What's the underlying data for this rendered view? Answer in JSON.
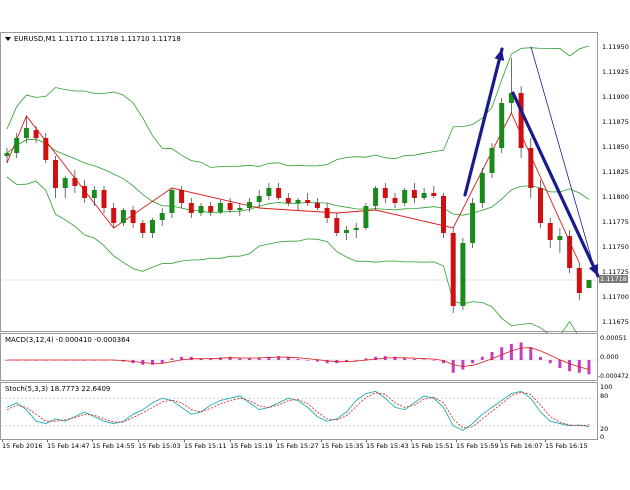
{
  "main": {
    "title": "EURUSD,M1  1.11710 1.11718 1.11710 1.11718",
    "price_ticks": [
      "1.11950",
      "1.11925",
      "1.11900",
      "1.11875",
      "1.11850",
      "1.11825",
      "1.11800",
      "1.11775",
      "1.11750",
      "1.11725",
      "1.11700",
      "1.11675"
    ],
    "current_price": "1.11718",
    "colors": {
      "bull": "#1a8a1a",
      "bear": "#d01010",
      "bands": "#2e9e2e",
      "zigzag": "#e01818",
      "arrow": "#1a1a8c"
    }
  },
  "macd": {
    "title": "MACD(3,12,4) -0.000410 -0.000364",
    "ticks": [
      "0.00051",
      "0.000",
      "-0.000472"
    ],
    "colors": {
      "hist": "#c040c0",
      "signal": "#e01818"
    }
  },
  "stoch": {
    "title": "Stoch(5,3,3) 18.7773 22.6409",
    "ticks": [
      "100",
      "80",
      "20",
      "0"
    ],
    "colors": {
      "main": "#20b0b0",
      "signal": "#e01818"
    }
  },
  "time_axis": {
    "labels": [
      "15 Feb 2016",
      "15 Feb 14:47",
      "15 Feb 14:55",
      "15 Feb 15:03",
      "15 Feb 15:11",
      "15 Feb 15:19",
      "15 Feb 15:27",
      "15 Feb 15:35",
      "15 Feb 15:43",
      "15 Feb 15:51",
      "15 Feb 15:59",
      "15 Feb 16:07",
      "15 Feb 16:15"
    ]
  },
  "chart_data": {
    "type": "candlestick",
    "symbol": "EURUSD,M1",
    "ylim": [
      1.11665,
      1.11965
    ],
    "candles": [
      [
        1.11842,
        1.1185,
        1.11835,
        1.11845
      ],
      [
        1.11845,
        1.11865,
        1.1184,
        1.1186
      ],
      [
        1.1186,
        1.11882,
        1.11855,
        1.1187
      ],
      [
        1.11868,
        1.11872,
        1.11855,
        1.1186
      ],
      [
        1.1186,
        1.11865,
        1.11835,
        1.11838
      ],
      [
        1.11838,
        1.11842,
        1.118,
        1.1181
      ],
      [
        1.1181,
        1.11822,
        1.118,
        1.1182
      ],
      [
        1.1182,
        1.11828,
        1.11805,
        1.11812
      ],
      [
        1.11812,
        1.11818,
        1.11795,
        1.118
      ],
      [
        1.118,
        1.11812,
        1.11792,
        1.11808
      ],
      [
        1.11808,
        1.11812,
        1.11785,
        1.1179
      ],
      [
        1.1179,
        1.11795,
        1.1177,
        1.11775
      ],
      [
        1.11775,
        1.1179,
        1.11772,
        1.11788
      ],
      [
        1.11788,
        1.11792,
        1.1177,
        1.11775
      ],
      [
        1.11775,
        1.11778,
        1.1176,
        1.11765
      ],
      [
        1.11765,
        1.1178,
        1.1176,
        1.11778
      ],
      [
        1.11778,
        1.1179,
        1.11772,
        1.11785
      ],
      [
        1.11785,
        1.1181,
        1.1178,
        1.11808
      ],
      [
        1.11808,
        1.11812,
        1.1179,
        1.11795
      ],
      [
        1.11795,
        1.118,
        1.1178,
        1.11785
      ],
      [
        1.11785,
        1.11795,
        1.11782,
        1.11792
      ],
      [
        1.11792,
        1.11796,
        1.11782,
        1.11786
      ],
      [
        1.11786,
        1.11798,
        1.11784,
        1.11795
      ],
      [
        1.11795,
        1.118,
        1.11785,
        1.11788
      ],
      [
        1.11788,
        1.11795,
        1.11782,
        1.1179
      ],
      [
        1.1179,
        1.118,
        1.11786,
        1.11796
      ],
      [
        1.11796,
        1.11808,
        1.1179,
        1.11802
      ],
      [
        1.11802,
        1.11815,
        1.11798,
        1.1181
      ],
      [
        1.1181,
        1.11815,
        1.11798,
        1.118
      ],
      [
        1.118,
        1.11805,
        1.11792,
        1.11795
      ],
      [
        1.11795,
        1.118,
        1.11788,
        1.11798
      ],
      [
        1.11798,
        1.11805,
        1.11792,
        1.11795
      ],
      [
        1.11795,
        1.118,
        1.11788,
        1.1179
      ],
      [
        1.1179,
        1.11795,
        1.11775,
        1.1178
      ],
      [
        1.1178,
        1.11785,
        1.11762,
        1.11765
      ],
      [
        1.11765,
        1.11772,
        1.11758,
        1.11768
      ],
      [
        1.11768,
        1.11775,
        1.1176,
        1.1177
      ],
      [
        1.1177,
        1.11795,
        1.11768,
        1.11792
      ],
      [
        1.11792,
        1.11812,
        1.11788,
        1.1181
      ],
      [
        1.1181,
        1.11815,
        1.11795,
        1.118
      ],
      [
        1.118,
        1.11805,
        1.1179,
        1.11795
      ],
      [
        1.11795,
        1.1181,
        1.11792,
        1.11808
      ],
      [
        1.11808,
        1.11815,
        1.11795,
        1.118
      ],
      [
        1.118,
        1.1181,
        1.11798,
        1.11805
      ],
      [
        1.11805,
        1.11812,
        1.118,
        1.11802
      ],
      [
        1.11802,
        1.11805,
        1.1176,
        1.11765
      ],
      [
        1.11765,
        1.1177,
        1.11685,
        1.11692
      ],
      [
        1.11692,
        1.1176,
        1.11688,
        1.11755
      ],
      [
        1.11755,
        1.118,
        1.1175,
        1.11795
      ],
      [
        1.11795,
        1.1183,
        1.1179,
        1.11825
      ],
      [
        1.11825,
        1.11855,
        1.1182,
        1.1185
      ],
      [
        1.1185,
        1.119,
        1.11845,
        1.11895
      ],
      [
        1.11895,
        1.1194,
        1.11885,
        1.11905
      ],
      [
        1.11905,
        1.11912,
        1.1184,
        1.1185
      ],
      [
        1.1185,
        1.1186,
        1.118,
        1.1181
      ],
      [
        1.1181,
        1.11818,
        1.1177,
        1.11775
      ],
      [
        1.11775,
        1.1178,
        1.1175,
        1.11758
      ],
      [
        1.11758,
        1.1177,
        1.11745,
        1.11762
      ],
      [
        1.11762,
        1.11768,
        1.11725,
        1.1173
      ],
      [
        1.1173,
        1.11735,
        1.11698,
        1.11705
      ],
      [
        1.1171,
        1.11718,
        1.1171,
        1.11718
      ]
    ],
    "annotations": [
      {
        "type": "arrow",
        "direction": "up",
        "color": "#1a1a8c"
      },
      {
        "type": "arrow",
        "direction": "down",
        "color": "#1a1a8c"
      },
      {
        "type": "zigzag",
        "color": "#e01818"
      },
      {
        "type": "bollinger_bands",
        "color": "#2e9e2e"
      }
    ],
    "macd_hist": [
      0,
      0,
      0,
      0,
      0,
      0,
      0,
      0,
      0,
      0,
      0,
      0,
      -0.5,
      -1,
      -1.5,
      -1.5,
      -1,
      0.5,
      1,
      1,
      0.5,
      0.5,
      0.8,
      1,
      0.5,
      0.5,
      0.8,
      1,
      1.2,
      0.8,
      0.3,
      0,
      -0.5,
      -1,
      -1,
      -0.5,
      0,
      0.5,
      1,
      1.2,
      1,
      0.6,
      0.3,
      0.2,
      0,
      -1,
      -4,
      -3,
      -1,
      1,
      2.5,
      4,
      5,
      5.5,
      4,
      1,
      -1,
      -2.5,
      -3.5,
      -4,
      -4.5
    ],
    "stoch_main": [
      60,
      70,
      55,
      30,
      25,
      35,
      30,
      40,
      50,
      40,
      30,
      25,
      30,
      45,
      55,
      70,
      80,
      75,
      60,
      45,
      50,
      65,
      75,
      80,
      85,
      70,
      55,
      60,
      70,
      80,
      75,
      60,
      40,
      30,
      35,
      50,
      75,
      90,
      95,
      80,
      60,
      55,
      70,
      85,
      80,
      60,
      20,
      10,
      25,
      45,
      60,
      75,
      90,
      95,
      80,
      50,
      30,
      25,
      20,
      22,
      18
    ],
    "stoch_signal": [
      55,
      65,
      60,
      45,
      30,
      30,
      33,
      38,
      45,
      43,
      35,
      28,
      28,
      38,
      48,
      60,
      72,
      76,
      70,
      55,
      50,
      58,
      68,
      75,
      80,
      75,
      63,
      60,
      65,
      75,
      77,
      68,
      50,
      35,
      33,
      42,
      62,
      82,
      92,
      88,
      70,
      60,
      65,
      78,
      82,
      70,
      35,
      15,
      18,
      35,
      52,
      68,
      85,
      93,
      88,
      65,
      40,
      28,
      22,
      20,
      22
    ]
  }
}
